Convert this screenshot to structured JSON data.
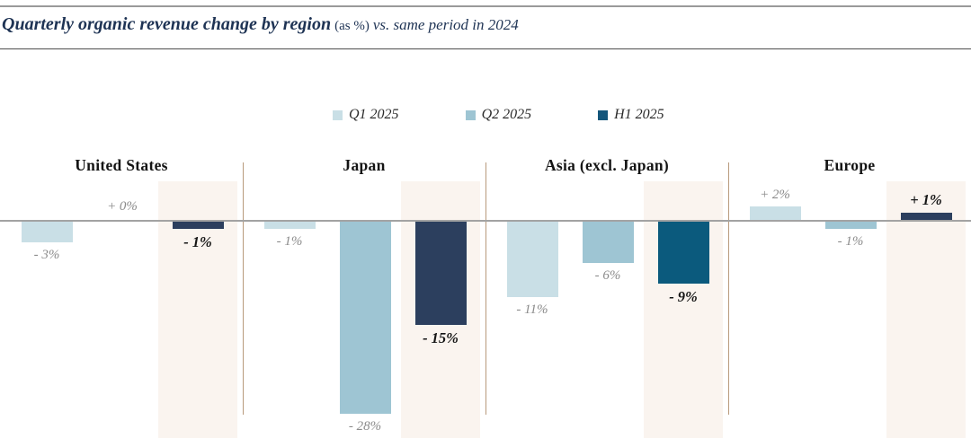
{
  "header": {
    "rule_top_color": "#9a9a9a",
    "rule_bottom_color": "#4d4d4d",
    "title_color": "#1e3354"
  },
  "chart_data": {
    "type": "bar",
    "title_main": "Quarterly organic revenue change by region",
    "title_unit": "(as %)",
    "title_period": "vs. same period in 2024",
    "categories": [
      "United States",
      "Japan",
      "Asia (excl. Japan)",
      "Europe"
    ],
    "series": [
      {
        "name": "Q1 2025",
        "color": "#c9dfe6",
        "values": [
          -3,
          -1,
          -11,
          2
        ],
        "value_labels": [
          "- 3%",
          "- 1%",
          "- 11%",
          "+ 2%"
        ]
      },
      {
        "name": "Q2 2025",
        "color": "#9ec5d3",
        "values": [
          0,
          -28,
          -6,
          -1
        ],
        "value_labels": [
          "+ 0%",
          "- 28%",
          "- 6%",
          "- 1%"
        ]
      },
      {
        "name": "H1 2025",
        "color": "#2c3f5e",
        "legend_color": "#14567b",
        "bar_colors": [
          "#2c3f5e",
          "#2c3f5e",
          "#0b5a7d",
          "#2c3f5e"
        ],
        "values": [
          -1,
          -15,
          -9,
          1
        ],
        "value_labels": [
          "- 1%",
          "- 15%",
          "- 9%",
          "+ 1%"
        ],
        "emphasis": true
      }
    ],
    "baseline": 0,
    "ylim": [
      -30,
      4
    ],
    "grid": false,
    "y_axis_visible": false,
    "legend_position": "top-center",
    "highlight_band_series": "H1 2025",
    "band_color": "#faf4ef",
    "divider_color": "#b89a7c",
    "zero_line_color": "#a3a3a3",
    "value_label_color": "#8b8b8b",
    "emphasis_label_color": "#151515",
    "region_label_color": "#141414"
  }
}
